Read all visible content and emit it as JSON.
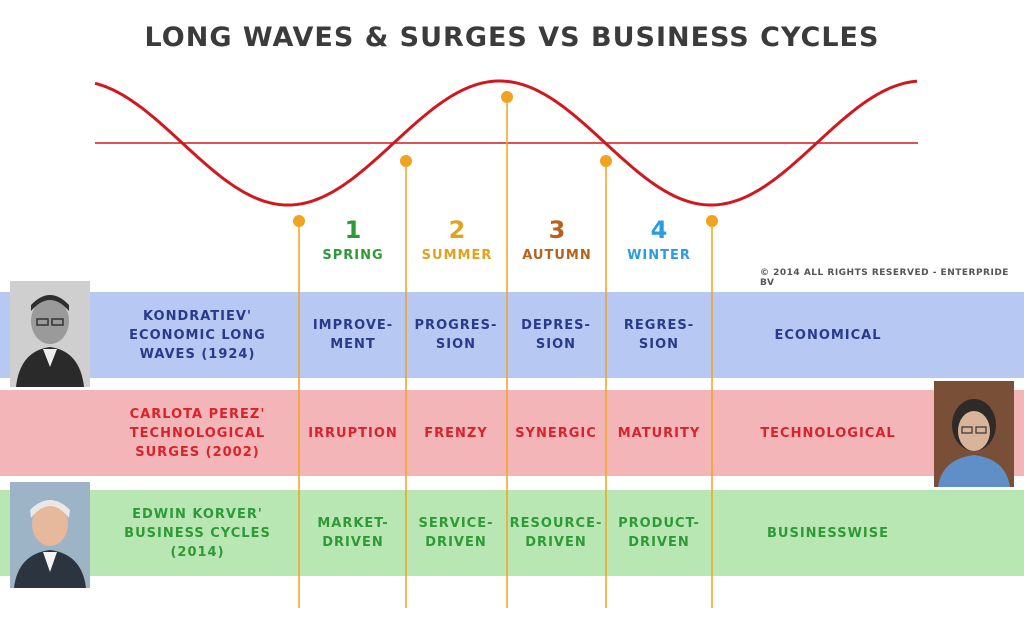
{
  "title": "LONG WAVES & SURGES VS BUSINESS CYCLES",
  "copyright": "© 2014 ALL RIGHTS RESERVED - ENTERPRIDE BV",
  "colors": {
    "wave": "#d0191f",
    "marker": "#f0a31f",
    "blue_band": "#b7c8f3",
    "red_band": "#f4b5b8",
    "green_band": "#b9e7b4",
    "spring": "#2e9a36",
    "summer": "#e3a21a",
    "autumn": "#b8611c",
    "winter": "#2a9de0"
  },
  "phases": [
    {
      "number": "1",
      "name": "SPRING"
    },
    {
      "number": "2",
      "name": "SUMMER"
    },
    {
      "number": "3",
      "name": "AUTUMN"
    },
    {
      "number": "4",
      "name": "WINTER"
    }
  ],
  "rows": [
    {
      "label": "KONDRATIEV'\nECONOMIC LONG\nWAVES (1924)",
      "cells": [
        "IMPROVE-\nMENT",
        "PROGRES-\nSION",
        "DEPRES-\nSION",
        "REGRES-\nSION"
      ],
      "summary": "ECONOMICAL"
    },
    {
      "label": "CARLOTA PEREZ'\nTECHNOLOGICAL\nSURGES (2002)",
      "cells": [
        "IRRUPTION",
        "FRENZY",
        "SYNERGIC",
        "MATURITY"
      ],
      "summary": "TECHNOLOGICAL"
    },
    {
      "label": "EDWIN KORVER'\nBUSINESS CYCLES\n(2014)",
      "cells": [
        "MARKET-\nDRIVEN",
        "SERVICE-\nDRIVEN",
        "RESOURCE-\nDRIVEN",
        "PRODUCT-\nDRIVEN"
      ],
      "summary": "BUSINESSWISE"
    }
  ],
  "photos": [
    "Kondratiev portrait",
    "Carlota Perez portrait",
    "Edwin Korver portrait"
  ]
}
